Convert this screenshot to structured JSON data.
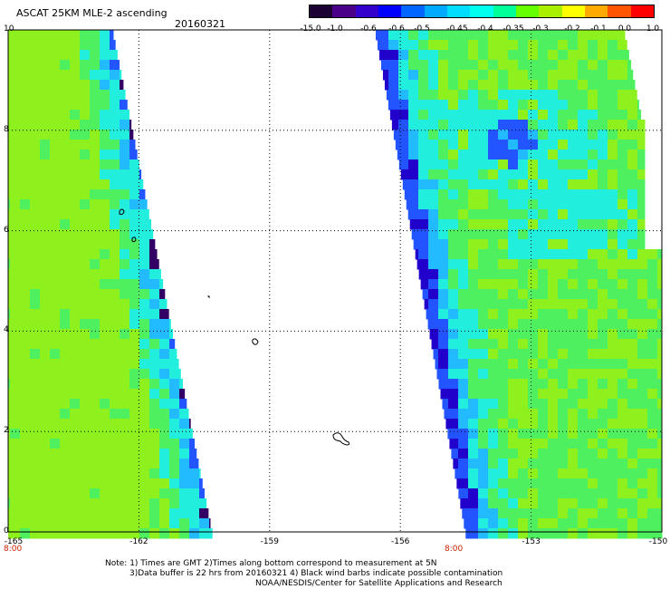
{
  "header": {
    "title": "ASCAT 25KM MLE-2 ascending",
    "date": "20160321"
  },
  "colorbar": {
    "labels": [
      "-15.0",
      "-1.0",
      "-0.6",
      "-0.6",
      "-0.5",
      "-0.45",
      "-0.4",
      "-0.35",
      "-0.3",
      "-0.2",
      "-0.1",
      "0.0",
      "1.0"
    ],
    "colors": [
      "#1a0033",
      "#4a0088",
      "#3300cc",
      "#0000ff",
      "#0066ff",
      "#00aaff",
      "#00ddff",
      "#00ffee",
      "#00ff99",
      "#66ff00",
      "#aaee00",
      "#ffff00",
      "#ffaa00",
      "#ff5500",
      "#ff0000"
    ]
  },
  "axes": {
    "y_ticks": [
      "0",
      "2",
      "4",
      "6",
      "8",
      "10"
    ],
    "x_ticks": [
      "-165",
      "-162",
      "-159",
      "-156",
      "-153",
      "-150"
    ],
    "time_labels": [
      "8:00",
      "8:00"
    ]
  },
  "notes": {
    "line1": "Note: 1) Times are GMT 2)Times along bottom correspond to measurement at 5N",
    "line2": "3)Data buffer is 22 hrs from 20160321 4) Black wind barbs indicate possible contamination",
    "line3": "NOAA/NESDIS/Center for Satellite Applications and Research"
  },
  "swath_colors": {
    "base": "#8ef01c",
    "green": "#4ef060",
    "cyan": "#22eedd",
    "lightblue": "#22bbff",
    "blue": "#2255ff",
    "deepblue": "#2200cc",
    "purple": "#330066"
  }
}
